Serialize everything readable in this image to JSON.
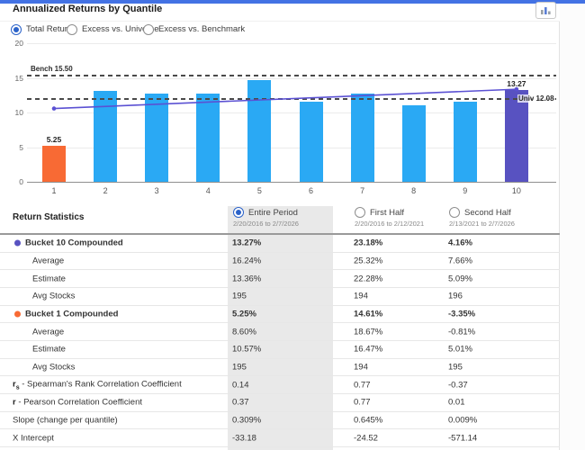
{
  "colors": {
    "top_strip": "#4372E4",
    "bar_blue": "#2AA9F4",
    "bar_orange": "#F86A34",
    "bar_purple": "#5852C1",
    "trend_line": "#5B51D3",
    "accent_radio": "#2A62C9",
    "highlight_column": "#e9e9e9"
  },
  "header": {
    "title": "Annualized Returns by Quantile"
  },
  "toolbar": {
    "chart_button_icon": "bar-chart-icon"
  },
  "view_options": [
    {
      "label": "Total Returns",
      "selected": true
    },
    {
      "label": "Excess vs. Universe",
      "selected": false
    },
    {
      "label": "Excess vs. Benchmark",
      "selected": false
    }
  ],
  "chart_data": {
    "type": "bar",
    "title": "Annualized Returns by Quantile",
    "categories": [
      "1",
      "2",
      "3",
      "4",
      "5",
      "6",
      "7",
      "8",
      "9",
      "10"
    ],
    "values": [
      5.25,
      13.1,
      12.75,
      12.7,
      14.65,
      11.6,
      12.75,
      11.0,
      11.6,
      13.27
    ],
    "bar_labels": {
      "0": "5.25",
      "9": "13.27"
    },
    "ylim": [
      0,
      20
    ],
    "yticks": [
      0,
      5,
      10,
      15,
      20
    ],
    "benchmark_line": {
      "label": "Bench 15.50",
      "value": 15.5
    },
    "universe_line": {
      "label": "Univ 12.08",
      "value": 12.08
    },
    "trend_line": {
      "start_value": 10.57,
      "end_value": 13.36
    },
    "grid": true,
    "legend": false
  },
  "table": {
    "title": "Return Statistics",
    "periods": [
      {
        "label": "Entire Period",
        "range": "2/20/2016 to 2/7/2026",
        "selected": true
      },
      {
        "label": "First Half",
        "range": "2/20/2016 to 2/12/2021",
        "selected": false
      },
      {
        "label": "Second Half",
        "range": "2/13/2021 to 2/7/2026",
        "selected": false
      }
    ],
    "rows": [
      {
        "label": "Bucket 10 Compounded",
        "dot": "#5852C1",
        "bold": true,
        "indent": 1,
        "values": [
          "13.27%",
          "23.18%",
          "4.16%"
        ]
      },
      {
        "label": "Average",
        "indent": 2,
        "values": [
          "16.24%",
          "25.32%",
          "7.66%"
        ]
      },
      {
        "label": "Estimate",
        "indent": 2,
        "values": [
          "13.36%",
          "22.28%",
          "5.09%"
        ]
      },
      {
        "label": "Avg Stocks",
        "indent": 2,
        "values": [
          "195",
          "194",
          "196"
        ]
      },
      {
        "label": "Bucket 1 Compounded",
        "dot": "#F86A34",
        "bold": true,
        "indent": 1,
        "values": [
          "5.25%",
          "14.61%",
          "-3.35%"
        ]
      },
      {
        "label": "Average",
        "indent": 2,
        "values": [
          "8.60%",
          "18.67%",
          "-0.81%"
        ]
      },
      {
        "label": "Estimate",
        "indent": 2,
        "values": [
          "10.57%",
          "16.47%",
          "5.01%"
        ]
      },
      {
        "label": "Avg Stocks",
        "indent": 2,
        "values": [
          "195",
          "194",
          "195"
        ]
      },
      {
        "prefix": "r",
        "sub": "s",
        "label": " - Spearman's Rank Correlation Coefficient",
        "indent": 0,
        "values": [
          "0.14",
          "0.77",
          "-0.37"
        ]
      },
      {
        "prefix": "r",
        "sub": "",
        "label": " - Pearson Correlation Coefficient",
        "indent": 0,
        "values": [
          "0.37",
          "0.77",
          "0.01"
        ]
      },
      {
        "label": "Slope (change per quantile)",
        "indent": 0,
        "values": [
          "0.309%",
          "0.645%",
          "0.009%"
        ]
      },
      {
        "label": "X Intercept",
        "indent": 0,
        "values": [
          "-33.18",
          "-24.52",
          "-571.14"
        ]
      }
    ]
  }
}
